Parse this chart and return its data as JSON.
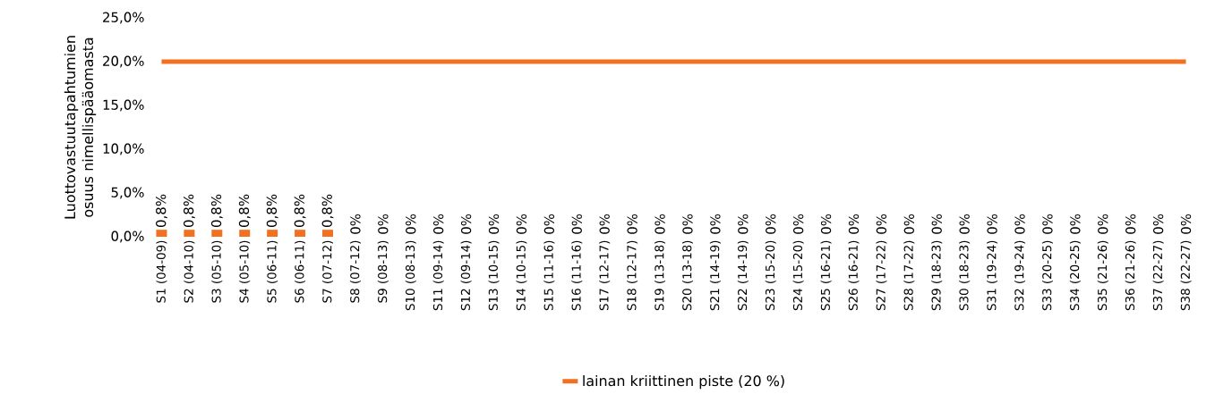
{
  "chart_data": {
    "type": "bar",
    "ylabel": "Luottovastuutapahtumien osuus nimellispääomasta",
    "categories": [
      "S1 (04-09)",
      "S2 (04-10)",
      "S3 (05-10)",
      "S4 (05-10)",
      "S5 (06-11)",
      "S6 (06-11)",
      "S7 (07-12)",
      "S8 (07-12)",
      "S9 (08-13)",
      "S10 (08-13)",
      "S11 (09-14)",
      "S12 (09-14)",
      "S13 (10-15)",
      "S14 (10-15)",
      "S15 (11-16)",
      "S16 (11-16)",
      "S17 (12-17)",
      "S18 (12-17)",
      "S19 (13-18)",
      "S20 (13-18)",
      "S21 (14-19)",
      "S22 (14-19)",
      "S23 (15-20)",
      "S24 (15-20)",
      "S25 (16-21)",
      "S26 (16-21)",
      "S27 (17-22)",
      "S28 (17-22)",
      "S29 (18-23)",
      "S30 (18-23)",
      "S31 (19-24)",
      "S32 (19-24)",
      "S33 (20-25)",
      "S34 (20-25)",
      "S35 (21-26)",
      "S36 (21-26)",
      "S37 (22-27)",
      "S38 (22-27)"
    ],
    "series": [
      {
        "color": "#f37021",
        "values": [
          0.8,
          0.8,
          0.8,
          0.8,
          0.8,
          0.8,
          0.8,
          0,
          0,
          0,
          0,
          0,
          0,
          0,
          0,
          0,
          0,
          0,
          0,
          0,
          0,
          0,
          0,
          0,
          0,
          0,
          0,
          0,
          0,
          0,
          0,
          0,
          0,
          0,
          0,
          0,
          0,
          0
        ],
        "value_labels": [
          "0,8%",
          "0,8%",
          "0,8%",
          "0,8%",
          "0,8%",
          "0,8%",
          "0,8%",
          "0%",
          "0%",
          "0%",
          "0%",
          "0%",
          "0%",
          "0%",
          "0%",
          "0%",
          "0%",
          "0%",
          "0%",
          "0%",
          "0%",
          "0%",
          "0%",
          "0%",
          "0%",
          "0%",
          "0%",
          "0%",
          "0%",
          "0%",
          "0%",
          "0%",
          "0%",
          "0%",
          "0%",
          "0%",
          "0%",
          "0%"
        ]
      },
      {
        "type": "line",
        "name": "lainan kriittinen piste (20 %)",
        "color": "#f37021",
        "values": [
          20,
          20,
          20,
          20,
          20,
          20,
          20,
          20,
          20,
          20,
          20,
          20,
          20,
          20,
          20,
          20,
          20,
          20,
          20,
          20,
          20,
          20,
          20,
          20,
          20,
          20,
          20,
          20,
          20,
          20,
          20,
          20,
          20,
          20,
          20,
          20,
          20,
          20
        ]
      }
    ],
    "ylim": [
      0,
      25
    ],
    "yticks": [
      {
        "value": 0,
        "label": "0,0%"
      },
      {
        "value": 5,
        "label": "5,0%"
      },
      {
        "value": 10,
        "label": "10,0%"
      },
      {
        "value": 15,
        "label": "15,0%"
      },
      {
        "value": 20,
        "label": "20,0%"
      },
      {
        "value": 25,
        "label": "25,0%"
      }
    ],
    "legend": "bottom"
  }
}
